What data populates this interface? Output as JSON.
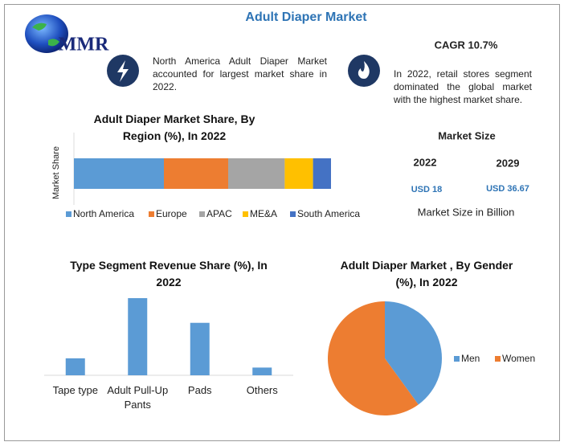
{
  "header": {
    "title": "Adult Diaper Market",
    "logo": "MMR"
  },
  "highlights": [
    {
      "text": "North America Adult Diaper Market accounted for largest market share in 2022."
    },
    {
      "title": "CAGR 10.7%",
      "text": "In 2022, retail stores segment dominated the global market with the highest market share."
    }
  ],
  "market_size": {
    "title": "Market Size",
    "years": [
      "2022",
      "2029"
    ],
    "values": [
      "USD 18",
      "USD 36.67"
    ],
    "note": "Market Size in Billion"
  },
  "chart_data": [
    {
      "type": "stacked_bar",
      "title": "Adult Diaper Market Share, By Region (%), In 2022",
      "y_label": "Market Share",
      "categories": [
        null
      ],
      "xlim": [
        0,
        100
      ],
      "series": [
        {
          "name": "North America",
          "color": "#5b9bd5",
          "values": [
            35
          ]
        },
        {
          "name": "Europe",
          "color": "#ed7d31",
          "values": [
            25
          ]
        },
        {
          "name": "APAC",
          "color": "#a5a5a5",
          "values": [
            22
          ]
        },
        {
          "name": "ME&A",
          "color": "#ffc000",
          "values": [
            11
          ]
        },
        {
          "name": "South America",
          "color": "#4472c4",
          "values": [
            7
          ]
        }
      ]
    },
    {
      "type": "bar",
      "title": "Type Segment Revenue Share (%), In 2022",
      "categories": [
        "Tape type",
        "Adult Pull-Up Pants",
        "Pads",
        "Others"
      ],
      "values": [
        11,
        50,
        34,
        5
      ],
      "color": "#5b9bd5",
      "ylim": [
        0,
        55
      ]
    },
    {
      "type": "pie",
      "title": "Adult Diaper Market , By Gender (%), In 2022",
      "categories": [
        "Men",
        "Women"
      ],
      "values": [
        40,
        60
      ],
      "colors": [
        "#5b9bd5",
        "#ed7d31"
      ]
    }
  ]
}
